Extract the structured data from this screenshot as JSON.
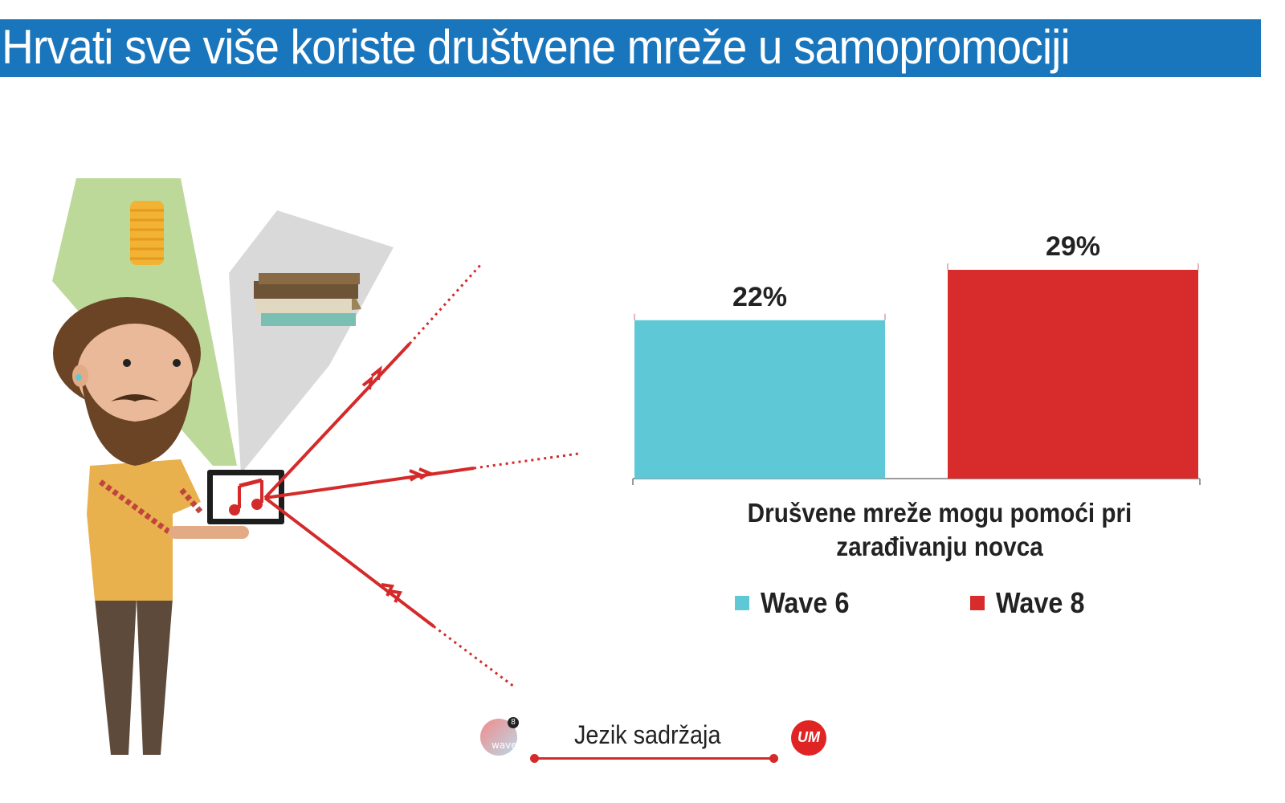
{
  "header": {
    "title": "Hrvati sve više koriste društvene mreže u samopromociji"
  },
  "colors": {
    "title_bar": "#1976bd",
    "wave6": "#5ec8d6",
    "wave8": "#d82b2b",
    "accent": "#d42a2a"
  },
  "illustration": {
    "icons": [
      "coins-icon",
      "books-icon",
      "music-note-icon",
      "tablet-icon"
    ]
  },
  "chart_data": {
    "type": "bar",
    "categories": [
      "Drušvene mreže mogu pomoći pri zarađivanju novca"
    ],
    "series": [
      {
        "name": "Wave 6",
        "values": [
          22
        ],
        "label": "22%",
        "color": "#5ec8d6"
      },
      {
        "name": "Wave 8",
        "values": [
          29
        ],
        "label": "29%",
        "color": "#d82b2b"
      }
    ],
    "unit": "%",
    "ylim": [
      0,
      29
    ],
    "grid": false,
    "legend": "bottom"
  },
  "footer": {
    "label": "Jezik sadržaja",
    "logo_left": "wave",
    "logo_left_badge": "8",
    "logo_right": "UM"
  }
}
